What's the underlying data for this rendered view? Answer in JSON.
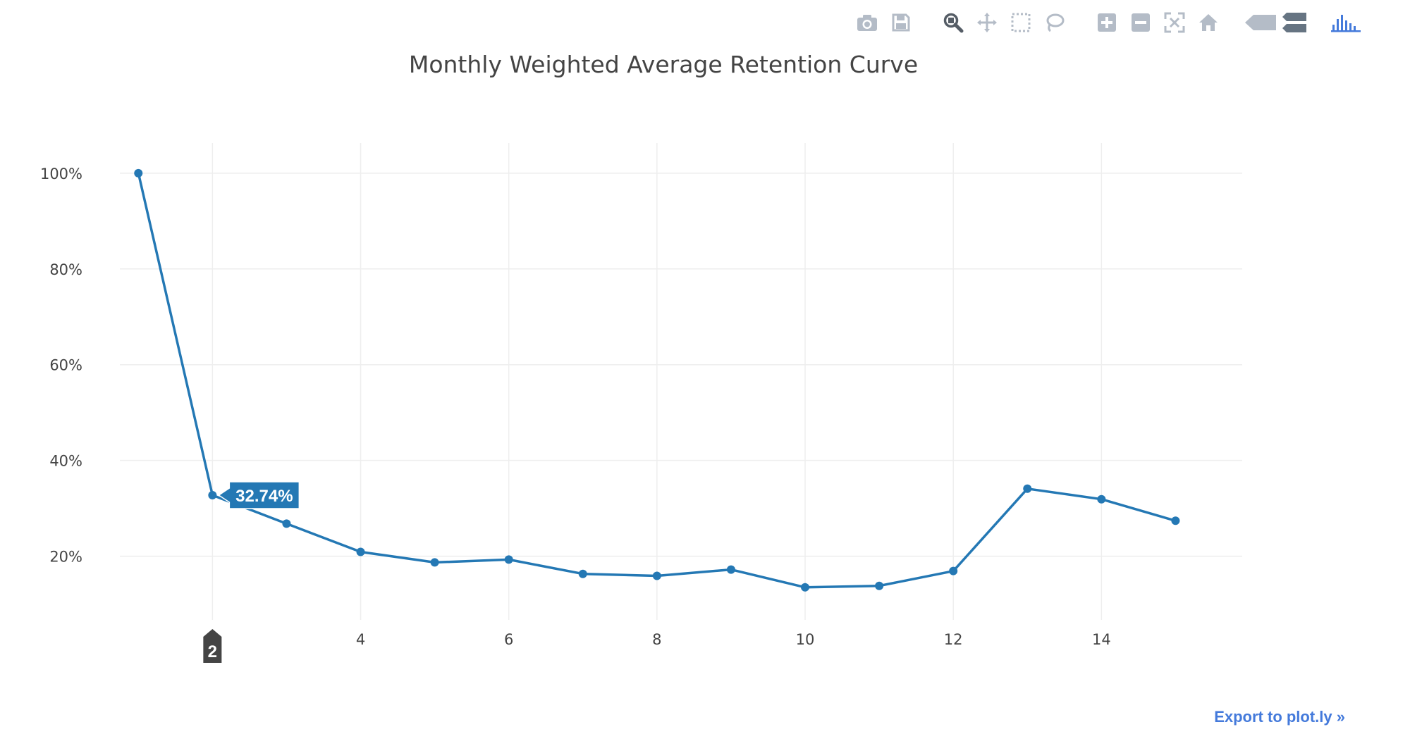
{
  "colors": {
    "line": "#2478b4",
    "grid": "#eeeeee",
    "text": "#444444",
    "modebar_icon": "#b4bcc7",
    "modebar_logo": "#447adb",
    "hover_bg": "#2478b4",
    "spike_bg": "#444444",
    "link": "#447adb"
  },
  "modebar": {
    "groups": [
      [
        {
          "name": "camera-icon",
          "title": "Download plot as a png"
        },
        {
          "name": "save-icon",
          "title": "Save and edit plot in cloud"
        }
      ],
      [
        {
          "name": "zoom-icon",
          "title": "Zoom"
        },
        {
          "name": "pan-icon",
          "title": "Pan"
        },
        {
          "name": "box-select-icon",
          "title": "Box Select"
        },
        {
          "name": "lasso-select-icon",
          "title": "Lasso Select"
        }
      ],
      [
        {
          "name": "zoom-in-icon",
          "title": "Zoom in"
        },
        {
          "name": "zoom-out-icon",
          "title": "Zoom out"
        },
        {
          "name": "autoscale-icon",
          "title": "Autoscale"
        },
        {
          "name": "home-icon",
          "title": "Reset axes"
        }
      ],
      [
        {
          "name": "spike-lines-icon",
          "title": "Show closest data on hover"
        },
        {
          "name": "compare-data-icon",
          "title": "Compare data on hover"
        }
      ],
      [
        {
          "name": "plotly-logo-icon",
          "title": "Produced with Plotly"
        }
      ]
    ]
  },
  "chart_data": {
    "type": "line",
    "title": "Monthly Weighted Average Retention Curve",
    "xlabel": "",
    "ylabel": "",
    "x": [
      1,
      2,
      3,
      4,
      5,
      6,
      7,
      8,
      9,
      10,
      11,
      12,
      13,
      14,
      15
    ],
    "series": [
      {
        "values": [
          100,
          32.74,
          26.8,
          20.9,
          18.7,
          19.3,
          16.3,
          15.9,
          17.2,
          13.5,
          13.8,
          16.9,
          34.1,
          31.9,
          27.4
        ]
      }
    ],
    "xlim": [
      0.75,
      15.9
    ],
    "ylim": [
      6.7,
      106.3
    ],
    "xticks": [
      4,
      6,
      8,
      10,
      12,
      14
    ],
    "yticks": [
      20,
      40,
      60,
      80,
      100
    ],
    "ytick_suffix": "%",
    "grid": true,
    "legend": "none",
    "hover": {
      "x": 2,
      "x_label": "2",
      "y_label": "32.74%"
    }
  },
  "footer": {
    "export_label": "Export to plot.ly »"
  }
}
